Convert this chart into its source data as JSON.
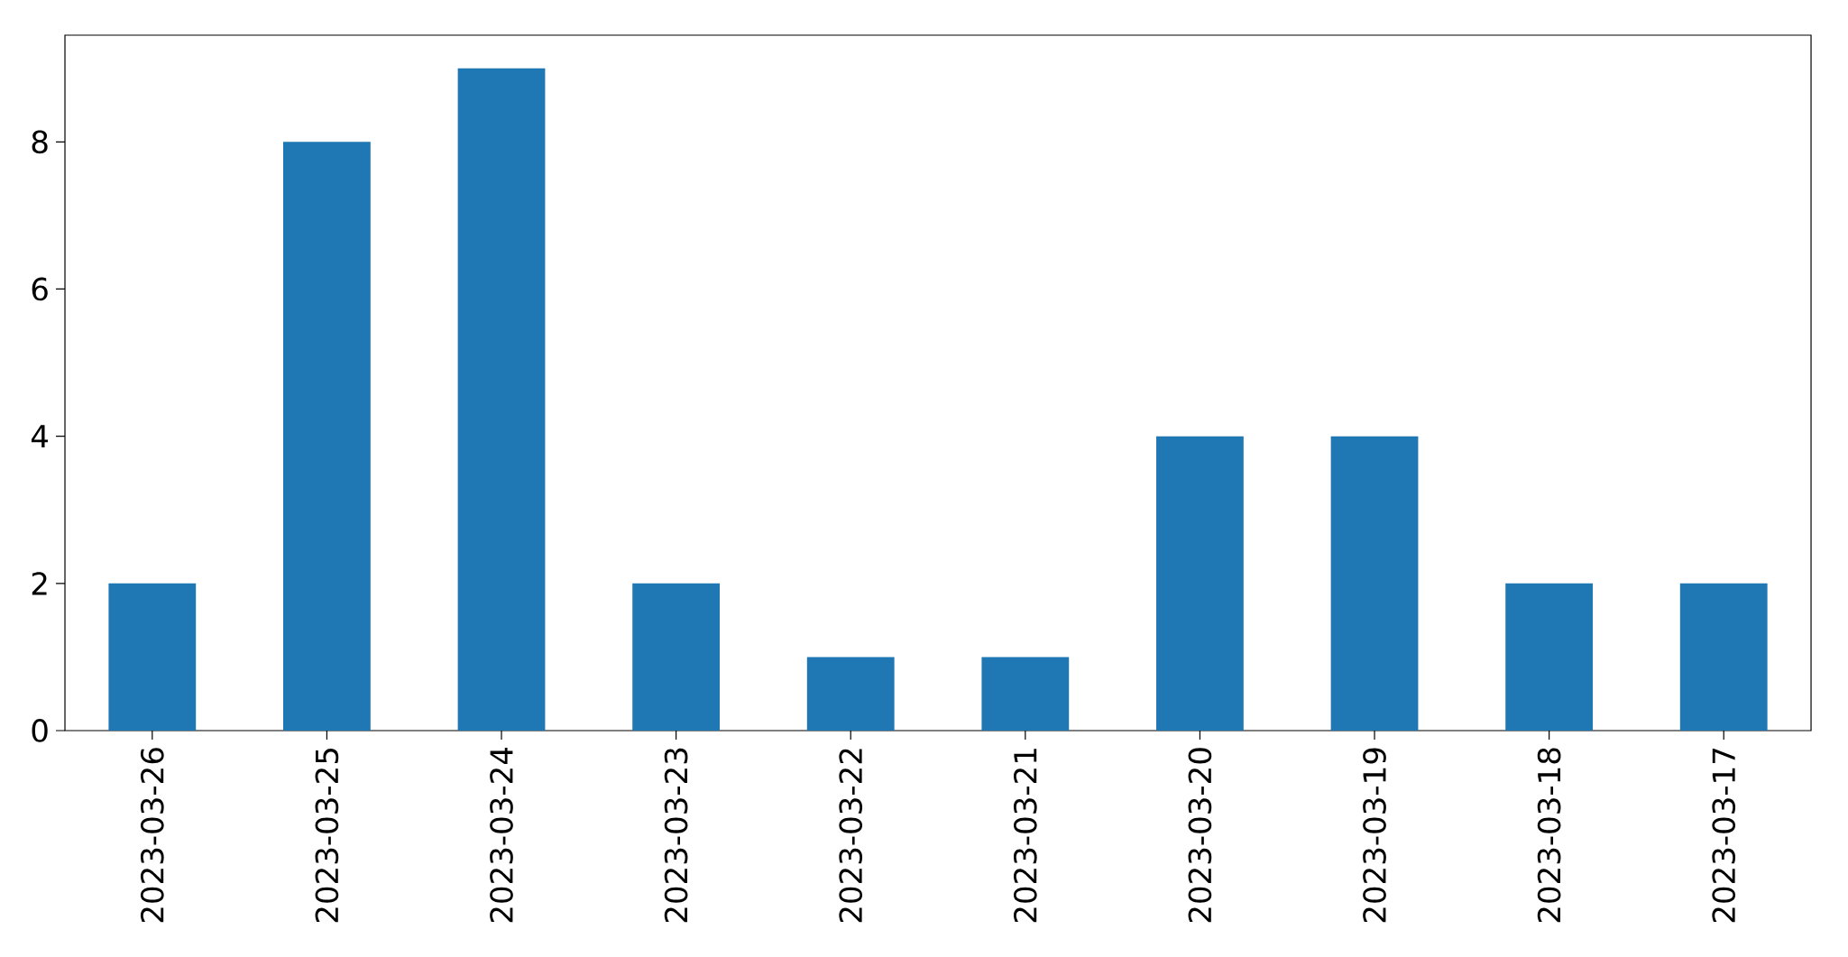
{
  "chart_data": {
    "type": "bar",
    "categories": [
      "2023-03-26",
      "2023-03-25",
      "2023-03-24",
      "2023-03-23",
      "2023-03-22",
      "2023-03-21",
      "2023-03-20",
      "2023-03-19",
      "2023-03-18",
      "2023-03-17"
    ],
    "values": [
      2,
      8,
      9,
      2,
      1,
      1,
      4,
      4,
      2,
      2
    ],
    "color": "#1f77b4",
    "ylim": [
      0,
      9.45
    ],
    "yticks": [
      0,
      2,
      4,
      6,
      8
    ]
  }
}
